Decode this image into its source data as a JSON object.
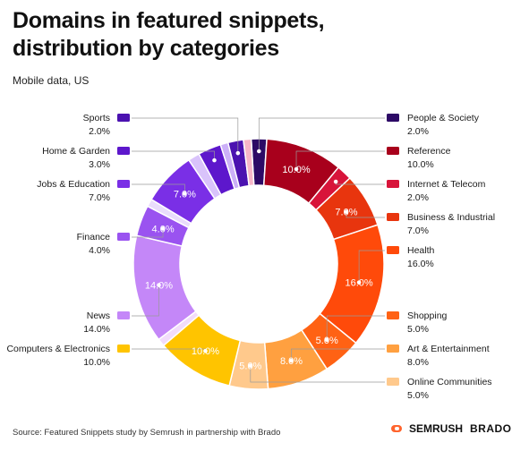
{
  "header": {
    "title": "Domains in featured snippets, distribution by categories",
    "subtitle": "Mobile data, US"
  },
  "footer": {
    "source": "Source: Featured Snippets study by Semrush in partnership with Brado",
    "logo_semrush": "SEMRUSH",
    "logo_brado": "BRADO"
  },
  "chart_data": {
    "type": "pie",
    "style": "donut",
    "slices": [
      {
        "label": "People & Society",
        "value": 2.0,
        "display": "2.0%",
        "color": "#2d0a66",
        "side": "right",
        "inner_label": false
      },
      {
        "label": "Reference",
        "value": 10.0,
        "display": "10.0%",
        "color": "#a8001c",
        "side": "right",
        "inner_label": true
      },
      {
        "label": "Internet & Telecom",
        "value": 2.0,
        "display": "2.0%",
        "color": "#d8143a",
        "side": "right",
        "inner_label": false
      },
      {
        "label": "Business & Industrial",
        "value": 7.0,
        "display": "7.0%",
        "color": "#e8350e",
        "side": "right",
        "inner_label": true
      },
      {
        "label": "Health",
        "value": 16.0,
        "display": "16.0%",
        "color": "#ff4a0a",
        "side": "right",
        "inner_label": true
      },
      {
        "label": "Shopping",
        "value": 5.0,
        "display": "5.0%",
        "color": "#ff6214",
        "side": "right",
        "inner_label": true
      },
      {
        "label": "Art & Entertainment",
        "value": 8.0,
        "display": "8.0%",
        "color": "#ffa040",
        "side": "right",
        "inner_label": true
      },
      {
        "label": "Online Communities",
        "value": 5.0,
        "display": "5.0%",
        "color": "#ffc98c",
        "side": "right",
        "inner_label": true
      },
      {
        "label": "Computers & Electronics",
        "value": 10.0,
        "display": "10.0%",
        "color": "#ffc400",
        "side": "left",
        "inner_label": true
      },
      {
        "label": "(unlabeled)",
        "value": 1.0,
        "display": "",
        "color": "#f2dcfb",
        "side": "none",
        "inner_label": false
      },
      {
        "label": "News",
        "value": 14.0,
        "display": "14.0%",
        "color": "#c487f8",
        "side": "left",
        "inner_label": true
      },
      {
        "label": "Finance",
        "value": 4.0,
        "display": "4.0%",
        "color": "#9a53f0",
        "side": "left",
        "inner_label": true
      },
      {
        "label": "(unlabeled)",
        "value": 1.0,
        "display": "",
        "color": "#eadcfc",
        "side": "none",
        "inner_label": false
      },
      {
        "label": "Jobs & Education",
        "value": 7.0,
        "display": "7.0%",
        "color": "#7a2fe6",
        "side": "left",
        "inner_label": true
      },
      {
        "label": "(unlabeled)",
        "value": 1.5,
        "display": "",
        "color": "#d9c3fb",
        "side": "none",
        "inner_label": false
      },
      {
        "label": "Home & Garden",
        "value": 3.0,
        "display": "3.0%",
        "color": "#5d17cc",
        "side": "left",
        "inner_label": false
      },
      {
        "label": "(unlabeled)",
        "value": 1.0,
        "display": "",
        "color": "#ccb0f8",
        "side": "none",
        "inner_label": false
      },
      {
        "label": "Sports",
        "value": 2.0,
        "display": "2.0%",
        "color": "#4b12b0",
        "side": "left",
        "inner_label": false
      },
      {
        "label": "(unlabeled)",
        "value": 1.0,
        "display": "",
        "color": "#f7b6c8",
        "side": "none",
        "inner_label": false
      }
    ]
  }
}
